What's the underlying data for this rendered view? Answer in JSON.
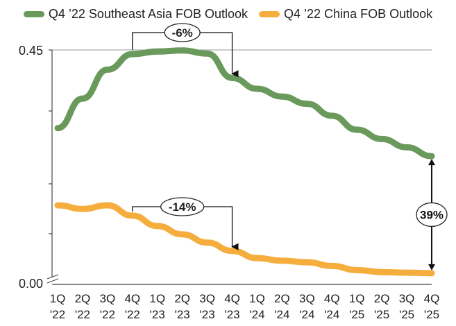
{
  "chart_data": {
    "type": "line",
    "title": "",
    "xlabel": "",
    "ylabel": "",
    "ylim": [
      0,
      0.45
    ],
    "yticks": [
      "0.45",
      "0.00"
    ],
    "categories": [
      [
        "1Q",
        "'22"
      ],
      [
        "2Q",
        "'22"
      ],
      [
        "3Q",
        "'22"
      ],
      [
        "4Q",
        "'22"
      ],
      [
        "1Q",
        "'23"
      ],
      [
        "2Q",
        "'23"
      ],
      [
        "3Q",
        "'23"
      ],
      [
        "4Q",
        "'23"
      ],
      [
        "1Q",
        "'24"
      ],
      [
        "2Q",
        "'24"
      ],
      [
        "3Q",
        "'24"
      ],
      [
        "4Q",
        "'24"
      ],
      [
        "1Q",
        "'25"
      ],
      [
        "2Q",
        "'25"
      ],
      [
        "3Q",
        "'25"
      ],
      [
        "4Q",
        "'25"
      ]
    ],
    "legend_position": "top",
    "series": [
      {
        "name": "Q4 ’22 Southeast Asia FOB Outlook",
        "color": "#6a9a5b",
        "values": [
          0.299,
          0.356,
          0.412,
          0.442,
          0.447,
          0.449,
          0.443,
          0.396,
          0.375,
          0.36,
          0.346,
          0.323,
          0.296,
          0.278,
          0.262,
          0.245
        ]
      },
      {
        "name": "Q4 ’22 China FOB Outlook",
        "color": "#f5ae3d",
        "values": [
          0.15,
          0.143,
          0.15,
          0.13,
          0.11,
          0.094,
          0.078,
          0.062,
          0.048,
          0.043,
          0.04,
          0.033,
          0.025,
          0.021,
          0.02,
          0.019
        ]
      }
    ],
    "annotations": [
      {
        "text": "-6%",
        "series": 0,
        "from": 3,
        "to": 7
      },
      {
        "text": "-14%",
        "series": 1,
        "from": 3,
        "to": 7
      },
      {
        "text": "39%",
        "between_series_at": 15
      }
    ]
  }
}
